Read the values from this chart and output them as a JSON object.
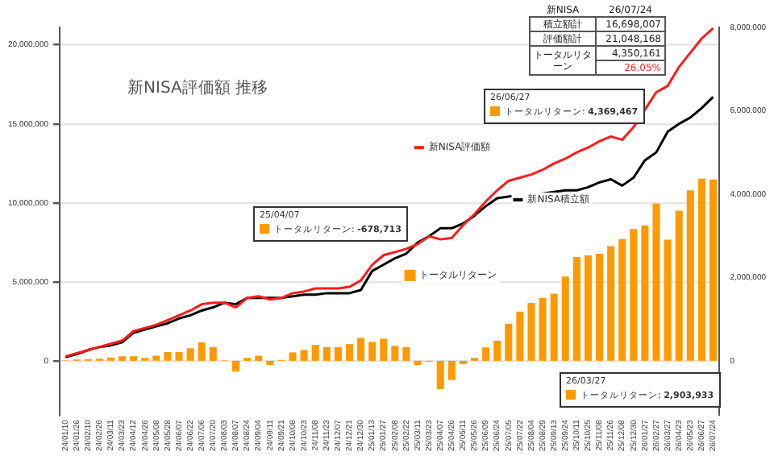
{
  "chart_data": {
    "type": "bar",
    "title": "新NISA評価額 推移",
    "categories": [
      "24/01/10",
      "24/01/26",
      "24/02/10",
      "24/02/26",
      "24/03/11",
      "24/03/23",
      "24/04/12",
      "24/04/26",
      "24/05/08",
      "24/05/28",
      "24/06/07",
      "24/06/22",
      "24/07/06",
      "24/07/20",
      "24/08/03",
      "24/08/07",
      "24/08/24",
      "24/09/04",
      "24/09/11",
      "24/09/21",
      "24/10/08",
      "24/10/23",
      "24/11/08",
      "24/11/23",
      "24/12/07",
      "24/12/21",
      "24/12/30",
      "25/01/13",
      "25/01/27",
      "25/02/08",
      "25/02/22",
      "25/03/11",
      "25/03/23",
      "25/04/07",
      "25/04/26",
      "25/05/11",
      "25/05/26",
      "25/06/09",
      "25/06/24",
      "25/07/05",
      "25/07/22",
      "25/08/04",
      "25/08/29",
      "25/09/13",
      "25/09/24",
      "25/10/11",
      "25/10/25",
      "25/11/08",
      "25/11/26",
      "25/12/08",
      "25/12/30",
      "26/01/27",
      "26/02/27",
      "26/03/27",
      "26/04/23",
      "26/05/23",
      "26/06/27",
      "26/07/24"
    ],
    "series": [
      {
        "name": "新NISA評価額",
        "type": "line",
        "color": "#ff1a1a",
        "values": [
          300000,
          500000,
          700000,
          900000,
          1100000,
          1300000,
          1900000,
          2100000,
          2300000,
          2600000,
          2900000,
          3200000,
          3600000,
          3700000,
          3700000,
          3400000,
          4000000,
          4100000,
          3900000,
          4000000,
          4300000,
          4400000,
          4600000,
          4600000,
          4600000,
          4700000,
          5100000,
          6100000,
          6700000,
          6900000,
          7100000,
          7400000,
          7900000,
          7700000,
          7800000,
          8600000,
          9300000,
          10100000,
          10800000,
          11400000,
          11600000,
          11800000,
          12100000,
          12500000,
          12800000,
          13200000,
          13500000,
          13900000,
          14200000,
          14000000,
          14800000,
          15900000,
          17000000,
          17400000,
          18600000,
          19500000,
          20400000,
          21048168
        ]
      },
      {
        "name": "新NISA積立額",
        "type": "line",
        "color": "#000000",
        "values": [
          250000,
          450000,
          700000,
          900000,
          1000000,
          1200000,
          1800000,
          2000000,
          2200000,
          2400000,
          2700000,
          2900000,
          3200000,
          3400000,
          3700000,
          3600000,
          4000000,
          4000000,
          4000000,
          4000000,
          4100000,
          4200000,
          4200000,
          4300000,
          4300000,
          4300000,
          4500000,
          5700000,
          6100000,
          6500000,
          6800000,
          7500000,
          7900000,
          8400000,
          8400000,
          8700000,
          9200000,
          9800000,
          10300000,
          10400000,
          10500000,
          10500000,
          10600000,
          10700000,
          10800000,
          10800000,
          11000000,
          11300000,
          11500000,
          11100000,
          11600000,
          12700000,
          13200000,
          14500000,
          15000000,
          15400000,
          16000000,
          16698007
        ]
      },
      {
        "name": "トータルリターン",
        "axis": "y2",
        "color": "#ff9900",
        "values": [
          10000,
          30000,
          40000,
          50000,
          80000,
          110000,
          110000,
          70000,
          120000,
          210000,
          210000,
          300000,
          440000,
          330000,
          10000,
          -260000,
          70000,
          120000,
          -100000,
          20000,
          200000,
          260000,
          380000,
          330000,
          330000,
          400000,
          550000,
          450000,
          530000,
          360000,
          330000,
          -100000,
          -20000,
          -678713,
          -460000,
          -80000,
          70000,
          320000,
          480000,
          890000,
          1180000,
          1390000,
          1510000,
          1610000,
          2020000,
          2490000,
          2530000,
          2570000,
          2750000,
          2920000,
          3160000,
          3250000,
          3770000,
          2903933,
          3600000,
          4090000,
          4369467,
          4350161
        ]
      }
    ],
    "ylim": [
      -3400000,
      21100000
    ],
    "yticks": [
      {
        "value": 0,
        "label": "0"
      },
      {
        "value": 5000000,
        "label": "5,000,000"
      },
      {
        "value": 10000000,
        "label": "10,000,000"
      },
      {
        "value": 15000000,
        "label": "15,000,000"
      },
      {
        "value": 20000000,
        "label": "20,000,000"
      }
    ],
    "y2lim": [
      -1300000,
      8000000
    ],
    "y2ticks": [
      {
        "value": 0,
        "label": "0"
      },
      {
        "value": 2000000,
        "label": "2,000,000"
      },
      {
        "value": 4000000,
        "label": "4,000,000"
      },
      {
        "value": 6000000,
        "label": "6,000,000"
      },
      {
        "value": 8000000,
        "label": "8,000,000"
      }
    ],
    "grid": "y",
    "marker": "none",
    "legend": "center",
    "annotations": [
      "新NISA",
      "26/07/24",
      "積立額計",
      "16,698,007",
      "評価額計",
      "21,048,168",
      "トータルリターン",
      "4,350,161",
      "26.05%",
      "25/04/07\nトータルリターン: -678,713",
      "26/06/27\nトータルリターン: 4,369,467",
      "26/03/27\nトータルリターン: 2,903,933"
    ]
  }
}
